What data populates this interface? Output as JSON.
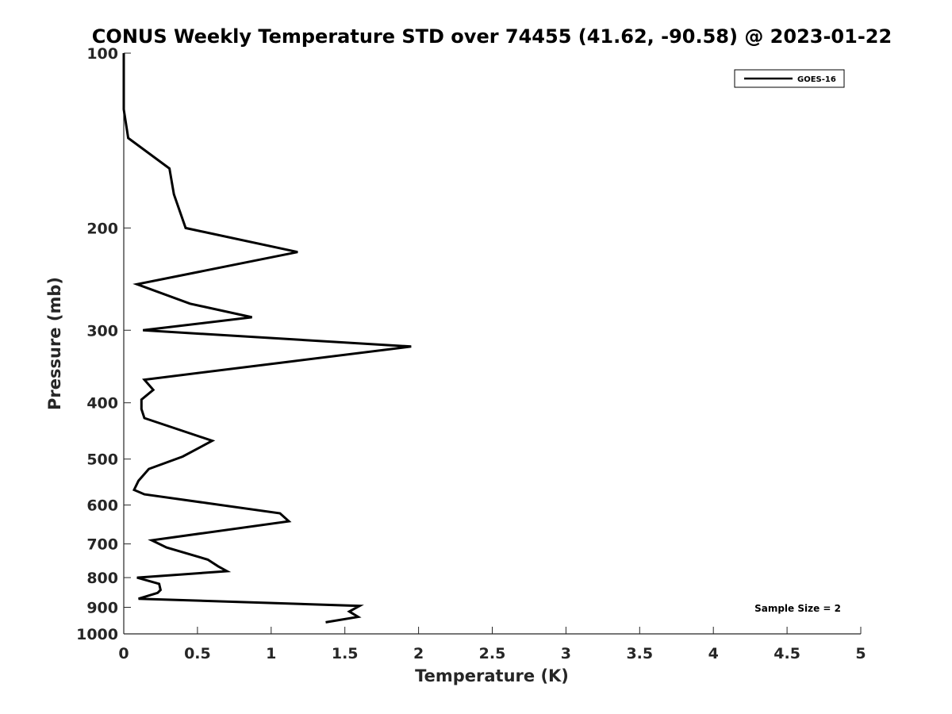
{
  "chart_data": {
    "type": "line",
    "title": "CONUS Weekly Temperature STD over 74455 (41.62, -90.58) @ 2023-01-22",
    "xlabel": "Temperature (K)",
    "ylabel": "Pressure (mb)",
    "xlim": [
      0,
      5
    ],
    "ylim": [
      1000,
      100
    ],
    "y_scale": "log",
    "y_reversed": true,
    "grid": false,
    "legend_position": "top-right",
    "x_ticks": [
      "0",
      "0.5",
      "1",
      "1.5",
      "2",
      "2.5",
      "3",
      "3.5",
      "4",
      "4.5",
      "5"
    ],
    "x_tick_values": [
      0,
      0.5,
      1,
      1.5,
      2,
      2.5,
      3,
      3.5,
      4,
      4.5,
      5
    ],
    "y_ticks": [
      "100",
      "200",
      "300",
      "400",
      "500",
      "600",
      "700",
      "800",
      "900",
      "1000"
    ],
    "y_tick_values": [
      100,
      200,
      300,
      400,
      500,
      600,
      700,
      800,
      900,
      1000
    ],
    "series": [
      {
        "name": "GOES-16",
        "color": "#000000",
        "x": [
          0.0,
          0.0,
          0.03,
          0.31,
          0.34,
          0.42,
          1.18,
          0.09,
          0.45,
          0.87,
          0.13,
          1.95,
          1.12,
          0.14,
          0.2,
          0.12,
          0.12,
          0.14,
          0.6,
          0.4,
          0.17,
          0.1,
          0.07,
          0.14,
          1.06,
          1.12,
          0.19,
          0.29,
          0.57,
          0.64,
          0.7,
          0.09,
          0.24,
          0.25,
          0.23,
          0.1,
          1.6,
          1.53,
          1.59,
          1.37
        ],
        "y": [
          100,
          125,
          140,
          158,
          175,
          200,
          220,
          250,
          270,
          285,
          300,
          320,
          340,
          365,
          380,
          395,
          410,
          425,
          465,
          495,
          520,
          545,
          565,
          575,
          620,
          640,
          690,
          710,
          745,
          765,
          780,
          800,
          820,
          840,
          850,
          870,
          895,
          915,
          935,
          955
        ]
      }
    ],
    "annotations": [
      "Sample Size = 2"
    ]
  }
}
